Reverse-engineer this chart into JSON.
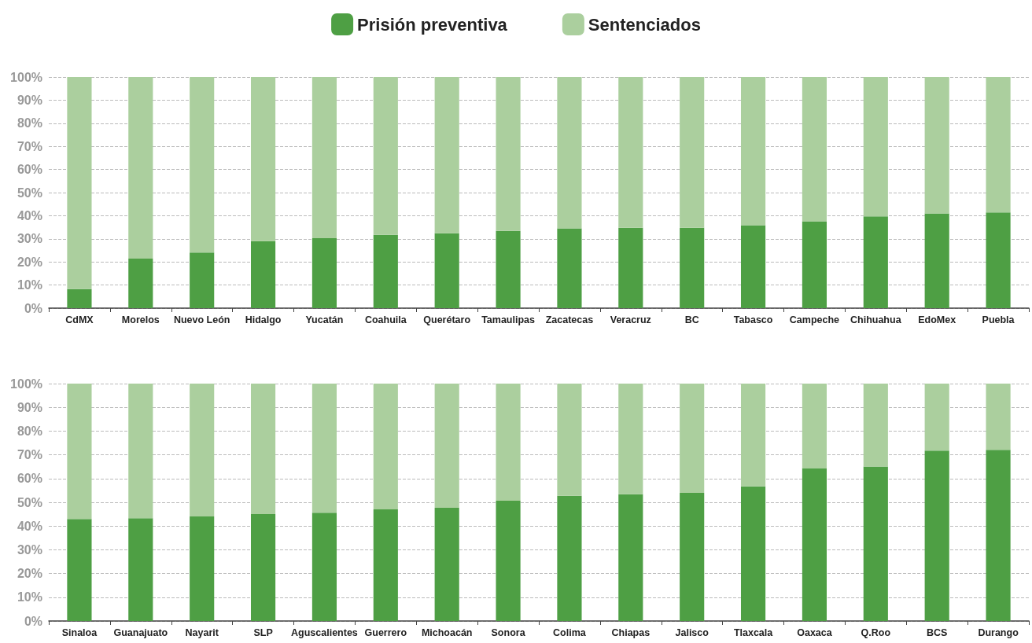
{
  "chart_data": [
    {
      "type": "bar",
      "stacked": true,
      "legend": "top",
      "grid": "y",
      "categories": [
        "CdMX",
        "Morelos",
        "Nuevo León",
        "Hidalgo",
        "Yucatán",
        "Coahuila",
        "Querétaro",
        "Tamaulipas",
        "Zacatecas",
        "Veracruz",
        "BC",
        "Tabasco",
        "Campeche",
        "Chihuahua",
        "EdoMex",
        "Puebla"
      ],
      "series": [
        {
          "name": "Prisión preventiva",
          "color": "#4e9f44",
          "values": [
            8.3,
            21.4,
            24.1,
            29,
            30.3,
            31.7,
            32.4,
            33.4,
            34.5,
            34.8,
            34.8,
            35.9,
            37.6,
            39.7,
            41,
            41.4
          ]
        },
        {
          "name": "Sentenciados",
          "color": "#abcf9e",
          "values": [
            91.7,
            78.6,
            75.9,
            71,
            69.7,
            68.3,
            67.6,
            66.6,
            65.5,
            65.2,
            65.2,
            64.1,
            62.4,
            60.3,
            59,
            58.6
          ]
        }
      ],
      "ylim": [
        0,
        100
      ],
      "yticks": [
        {
          "value": 0,
          "label": "0%"
        },
        {
          "value": 10,
          "label": "10%"
        },
        {
          "value": 20,
          "label": "20%"
        },
        {
          "value": 30,
          "label": "30%"
        },
        {
          "value": 40,
          "label": "40%"
        },
        {
          "value": 50,
          "label": "50%"
        },
        {
          "value": 60,
          "label": "60%"
        },
        {
          "value": 70,
          "label": "70%"
        },
        {
          "value": 80,
          "label": "80%"
        },
        {
          "value": 90,
          "label": "90%"
        },
        {
          "value": 100,
          "label": "100%"
        }
      ]
    },
    {
      "type": "bar",
      "stacked": true,
      "grid": "y",
      "categories": [
        "Sinaloa",
        "Guanajuato",
        "Nayarit",
        "SLP",
        "Aguscalientes",
        "Guerrero",
        "Michoacán",
        "Sonora",
        "Colima",
        "Chiapas",
        "Jalisco",
        "Tlaxcala",
        "Oaxaca",
        "Q.Roo",
        "BCS",
        "Durango"
      ],
      "series": [
        {
          "color": "#4e9f44",
          "values": [
            43,
            43.3,
            44,
            45,
            45.6,
            47,
            47.7,
            50.7,
            52.7,
            53.4,
            54,
            56.7,
            64.4,
            65.1,
            71.8,
            72.1
          ]
        },
        {
          "color": "#abcf9e",
          "values": [
            57,
            56.7,
            56,
            55,
            54.4,
            53,
            52.3,
            49.3,
            47.3,
            46.6,
            46,
            43.3,
            35.6,
            34.9,
            28.2,
            27.9
          ]
        }
      ],
      "ylim": [
        0,
        100
      ],
      "yticks": [
        {
          "value": 0,
          "label": "0%"
        },
        {
          "value": 10,
          "label": "10%"
        },
        {
          "value": 20,
          "label": "20%"
        },
        {
          "value": 30,
          "label": "30%"
        },
        {
          "value": 40,
          "label": "40%"
        },
        {
          "value": 50,
          "label": "50%"
        },
        {
          "value": 60,
          "label": "60%"
        },
        {
          "value": 70,
          "label": "70%"
        },
        {
          "value": 80,
          "label": "80%"
        },
        {
          "value": 90,
          "label": "90%"
        },
        {
          "value": 100,
          "label": "100%"
        }
      ]
    }
  ]
}
